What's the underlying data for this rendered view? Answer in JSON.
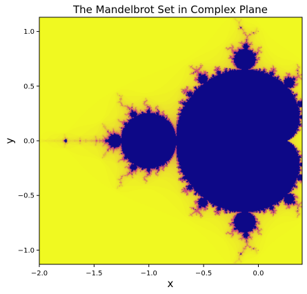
{
  "chart_data": {
    "type": "heatmap",
    "title": "The Mandelbrot Set in Complex Plane",
    "xlabel": "x",
    "ylabel": "y",
    "xlim": [
      -2.0,
      0.4
    ],
    "ylim": [
      -1.13,
      1.13
    ],
    "xticks": [
      -2.0,
      -1.5,
      -1.0,
      -0.5,
      0.0
    ],
    "yticks": [
      -1.0,
      -0.5,
      0.0,
      0.5,
      1.0
    ],
    "xtick_labels": [
      "−2.0",
      "−1.5",
      "−1.0",
      "−0.5",
      "0.0"
    ],
    "ytick_labels": [
      "−1.0",
      "−0.5",
      "0.0",
      "0.5",
      "1.0"
    ],
    "grid": false,
    "colormap": "plasma",
    "colors": {
      "inside": "#0d0887",
      "outside": "#f0f921",
      "boundary": "#cc4778"
    },
    "max_iterations": 80,
    "iteration_formula": "z = z^2 + c"
  }
}
